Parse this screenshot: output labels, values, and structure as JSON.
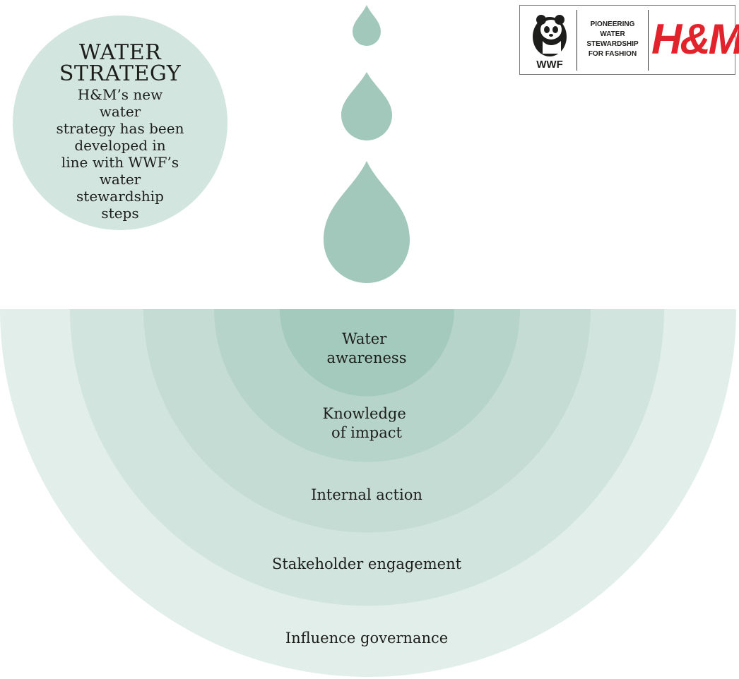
{
  "intro": {
    "title_line1": "WATER",
    "title_line2": "STRATEGY",
    "body_lines": [
      "H&M’s new water",
      "strategy has been",
      "developed in",
      "line with WWF’s",
      "water stewardship",
      "steps"
    ]
  },
  "logo": {
    "wwf_text": "WWF",
    "tagline_lines": [
      "PIONEERING",
      "WATER",
      "STEWARDSHIP",
      "FOR FASHION"
    ],
    "brand_text": "H&M"
  },
  "steps": [
    {
      "label_lines": [
        "Water",
        "awareness"
      ],
      "color": "#a4cabd"
    },
    {
      "label_lines": [
        "Knowledge",
        "of impact"
      ],
      "color": "#b6d4ca"
    },
    {
      "label_lines": [
        "Internal action"
      ],
      "color": "#c4dcd4"
    },
    {
      "label_lines": [
        "Stakeholder engagement"
      ],
      "color": "#d2e4de"
    },
    {
      "label_lines": [
        "Influence governance"
      ],
      "color": "#e2eeea"
    }
  ],
  "colors": {
    "drop": "#a1c8bb",
    "bubble": "#d2e5df",
    "text": "#1d1d1b",
    "hm_red": "#e3232c"
  }
}
